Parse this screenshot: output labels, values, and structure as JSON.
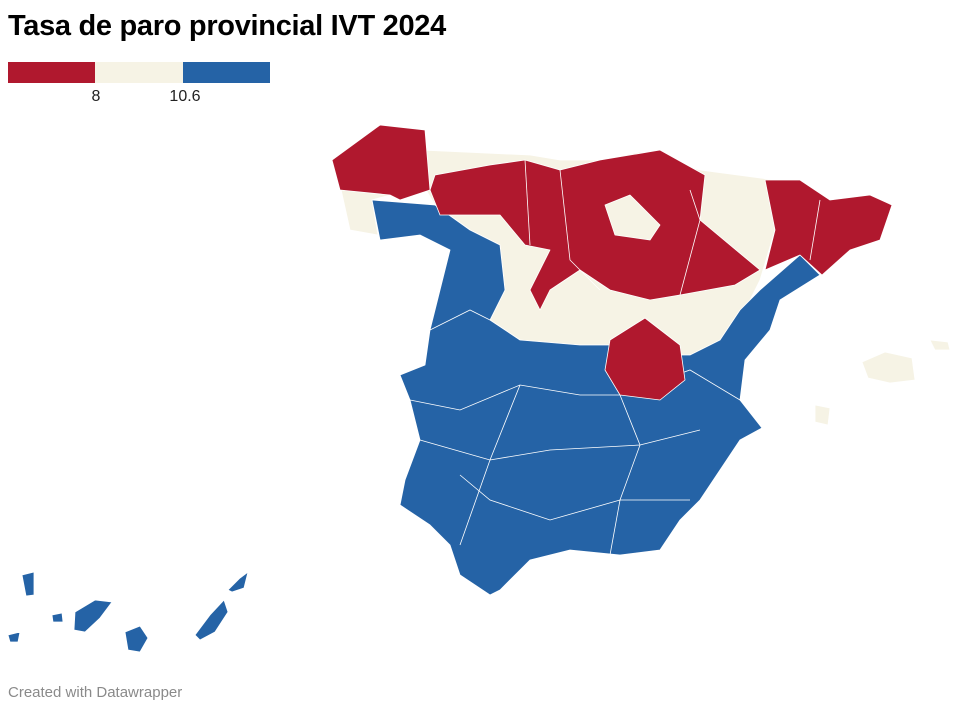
{
  "title": "Tasa de paro provincial IVT 2024",
  "legend": {
    "type": "threshold",
    "breaks": [
      "8",
      "10.6"
    ],
    "colors": [
      "#b0182e",
      "#f6f3e5",
      "#2563a6"
    ]
  },
  "footer": "Created with Datawrapper"
}
